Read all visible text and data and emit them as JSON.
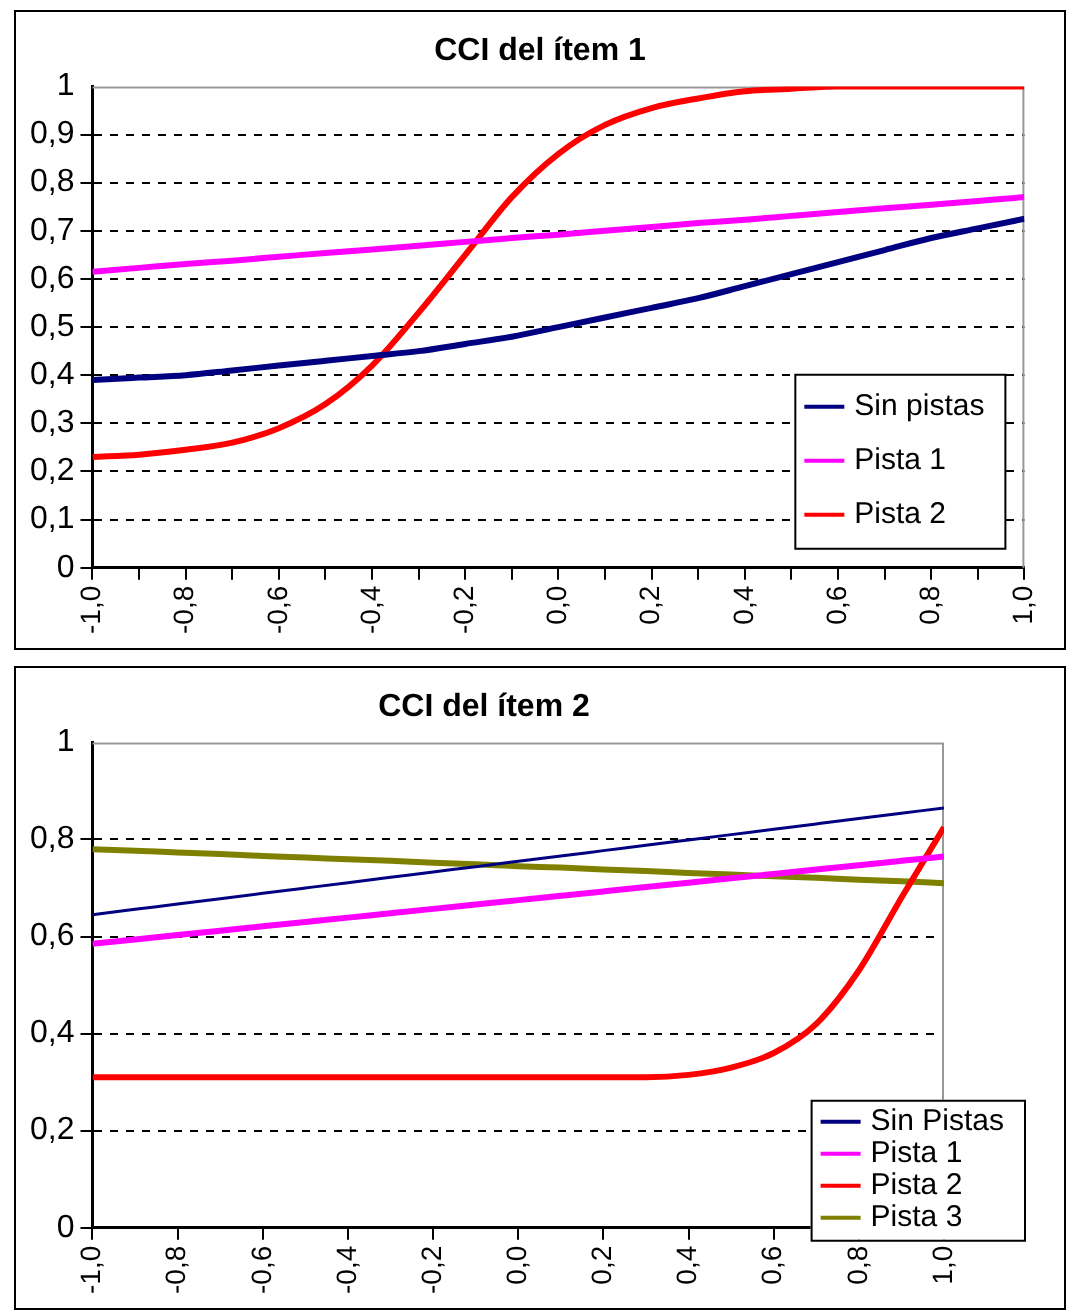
{
  "chart_data": [
    {
      "type": "line",
      "title": "CCI del ítem 1",
      "x": [
        -1,
        -0.9,
        -0.8,
        -0.7,
        -0.6,
        -0.5,
        -0.4,
        -0.3,
        -0.2,
        -0.1,
        0,
        0.1,
        0.2,
        0.3,
        0.4,
        0.5,
        0.6,
        0.7,
        0.8,
        0.9,
        1
      ],
      "series": [
        {
          "name": "Sin pistas",
          "color": "#000080",
          "values": [
            0.39,
            0.395,
            0.4,
            0.41,
            0.42,
            0.43,
            0.44,
            0.45,
            0.465,
            0.48,
            0.5,
            0.52,
            0.54,
            0.56,
            0.585,
            0.61,
            0.635,
            0.66,
            0.685,
            0.705,
            0.725
          ]
        },
        {
          "name": "Pista 1",
          "color": "#ff00ff",
          "values": [
            0.615,
            0.623,
            0.631,
            0.638,
            0.646,
            0.654,
            0.661,
            0.669,
            0.677,
            0.685,
            0.692,
            0.7,
            0.708,
            0.716,
            0.723,
            0.731,
            0.739,
            0.747,
            0.754,
            0.762,
            0.77
          ]
        },
        {
          "name": "Pista 2",
          "color": "#ff0000",
          "values": [
            0.23,
            0.235,
            0.245,
            0.26,
            0.29,
            0.34,
            0.42,
            0.53,
            0.65,
            0.77,
            0.86,
            0.92,
            0.955,
            0.975,
            0.99,
            0.995,
            1,
            1,
            1,
            1,
            1
          ]
        }
      ],
      "xlim": [
        -1,
        1
      ],
      "xticks": [
        {
          "value": -1,
          "label": "-1,0"
        },
        {
          "value": -0.9,
          "label": null
        },
        {
          "value": -0.8,
          "label": "-0,8"
        },
        {
          "value": -0.7,
          "label": null
        },
        {
          "value": -0.6,
          "label": "-0,6"
        },
        {
          "value": -0.5,
          "label": null
        },
        {
          "value": -0.4,
          "label": "-0,4"
        },
        {
          "value": -0.3,
          "label": null
        },
        {
          "value": -0.2,
          "label": "-0,2"
        },
        {
          "value": -0.1,
          "label": null
        },
        {
          "value": 0,
          "label": "0,0"
        },
        {
          "value": 0.1,
          "label": null
        },
        {
          "value": 0.2,
          "label": "0,2"
        },
        {
          "value": 0.3,
          "label": null
        },
        {
          "value": 0.4,
          "label": "0,4"
        },
        {
          "value": 0.5,
          "label": null
        },
        {
          "value": 0.6,
          "label": "0,6"
        },
        {
          "value": 0.7,
          "label": null
        },
        {
          "value": 0.8,
          "label": "0,8"
        },
        {
          "value": 0.9,
          "label": null
        },
        {
          "value": 1,
          "label": "1,0"
        }
      ],
      "ylim": [
        0,
        1
      ],
      "yticks": [
        {
          "value": 0,
          "label": "0"
        },
        {
          "value": 0.1,
          "label": "0,1"
        },
        {
          "value": 0.2,
          "label": "0,2"
        },
        {
          "value": 0.3,
          "label": "0,3"
        },
        {
          "value": 0.4,
          "label": "0,4"
        },
        {
          "value": 0.5,
          "label": "0,5"
        },
        {
          "value": 0.6,
          "label": "0,6"
        },
        {
          "value": 0.7,
          "label": "0,7"
        },
        {
          "value": 0.8,
          "label": "0,8"
        },
        {
          "value": 0.9,
          "label": "0,9"
        },
        {
          "value": 1,
          "label": "1"
        }
      ],
      "grid": "y",
      "legend": "bottom right"
    },
    {
      "type": "line",
      "title": "CCI del ítem 2",
      "x": [
        -1,
        -0.9,
        -0.8,
        -0.7,
        -0.6,
        -0.5,
        -0.4,
        -0.3,
        -0.2,
        -0.1,
        0,
        0.1,
        0.2,
        0.3,
        0.4,
        0.5,
        0.6,
        0.7,
        0.8,
        0.9,
        1
      ],
      "series": [
        {
          "name": "Sin Pistas",
          "color": "#000080",
          "values": [
            0.645,
            0.656,
            0.667,
            0.678,
            0.689,
            0.7,
            0.711,
            0.722,
            0.733,
            0.744,
            0.755,
            0.766,
            0.777,
            0.788,
            0.799,
            0.81,
            0.821,
            0.832,
            0.843,
            0.854,
            0.865
          ]
        },
        {
          "name": "Pista 1",
          "color": "#ff00ff",
          "values": [
            0.585,
            0.594,
            0.603,
            0.612,
            0.621,
            0.63,
            0.639,
            0.648,
            0.657,
            0.666,
            0.675,
            0.684,
            0.693,
            0.702,
            0.711,
            0.72,
            0.729,
            0.738,
            0.747,
            0.756,
            0.765
          ]
        },
        {
          "name": "Pista 2",
          "color": "#ff0000",
          "values": [
            0.31,
            0.31,
            0.31,
            0.31,
            0.31,
            0.31,
            0.31,
            0.31,
            0.31,
            0.31,
            0.31,
            0.31,
            0.31,
            0.31,
            0.315,
            0.33,
            0.36,
            0.42,
            0.53,
            0.68,
            0.825
          ]
        },
        {
          "name": "Pista 3",
          "color": "#808000",
          "values": [
            0.78,
            0.777,
            0.773,
            0.77,
            0.766,
            0.763,
            0.759,
            0.756,
            0.752,
            0.749,
            0.745,
            0.742,
            0.738,
            0.735,
            0.731,
            0.728,
            0.724,
            0.721,
            0.717,
            0.714,
            0.71
          ]
        }
      ],
      "xlim": [
        -1,
        1
      ],
      "xticks": [
        {
          "value": -1,
          "label": "-1,0"
        },
        {
          "value": -0.8,
          "label": "-0,8"
        },
        {
          "value": -0.6,
          "label": "-0,6"
        },
        {
          "value": -0.4,
          "label": "-0,4"
        },
        {
          "value": -0.2,
          "label": "-0,2"
        },
        {
          "value": 0,
          "label": "0,0"
        },
        {
          "value": 0.2,
          "label": "0,2"
        },
        {
          "value": 0.4,
          "label": "0,4"
        },
        {
          "value": 0.6,
          "label": "0,6"
        },
        {
          "value": 0.8,
          "label": "0,8"
        },
        {
          "value": 1,
          "label": "1,0"
        }
      ],
      "ylim": [
        0,
        1
      ],
      "yticks": [
        {
          "value": 0,
          "label": "0"
        },
        {
          "value": 0.2,
          "label": "0,2"
        },
        {
          "value": 0.4,
          "label": "0,4"
        },
        {
          "value": 0.6,
          "label": "0,6"
        },
        {
          "value": 0.8,
          "label": "0,8"
        },
        {
          "value": 1,
          "label": "1"
        }
      ],
      "grid": "y",
      "legend": "bottom right"
    }
  ]
}
